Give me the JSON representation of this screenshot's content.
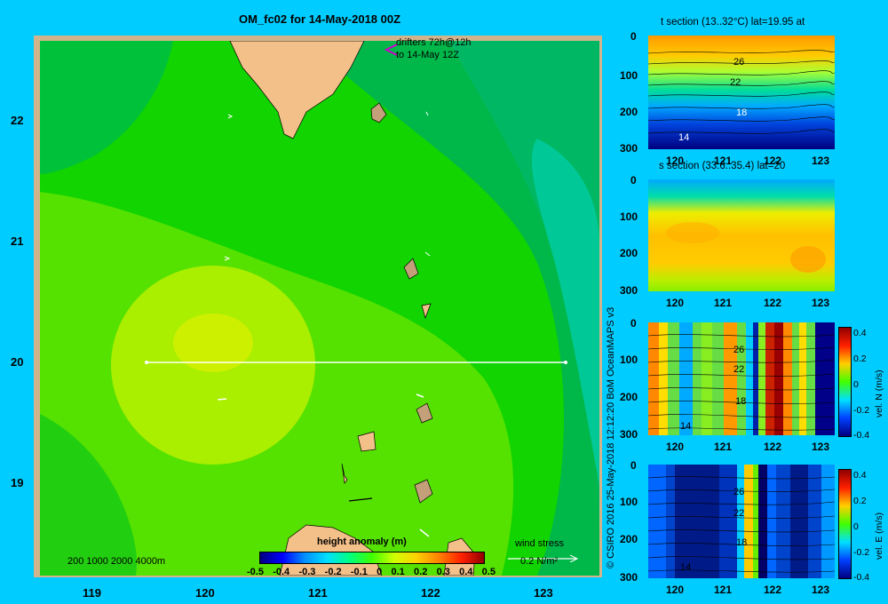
{
  "title": "OM_fc02 for 14-May-2018 00Z",
  "map": {
    "lon_ticks": [
      "119",
      "120",
      "121",
      "122",
      "123"
    ],
    "lat_ticks": [
      "22",
      "21",
      "20",
      "19"
    ],
    "drifters_line1": "drifters 72h@12h",
    "drifters_line2": "to 14-May 12Z",
    "depth_legend": "200  1000  2000  4000m",
    "wind_label": "wind stress",
    "wind_value": "0.2 N/m²",
    "colorbar_title": "height anomaly  (m)",
    "colorbar_ticks": [
      "-0.5",
      "-0.4",
      "-0.3",
      "-0.2",
      "-0.1",
      "0",
      "0.1",
      "0.2",
      "0.3",
      "0.4",
      "0.5"
    ]
  },
  "panels": [
    {
      "title": "t section (13..32°C) lat=19.95 at",
      "y_ticks": [
        "0",
        "100",
        "200",
        "300"
      ],
      "x_ticks": [
        "120",
        "121",
        "122",
        "123"
      ],
      "contours": [
        "26",
        "22",
        "18",
        "14"
      ]
    },
    {
      "title": "s section (33.6..35.4) lat=20",
      "y_ticks": [
        "0",
        "100",
        "200",
        "300"
      ],
      "x_ticks": [
        "120",
        "121",
        "122",
        "123"
      ],
      "contours": []
    },
    {
      "title": "",
      "y_ticks": [
        "0",
        "100",
        "200",
        "300"
      ],
      "x_ticks": [
        "120",
        "121",
        "122",
        "123"
      ],
      "contours": [
        "26",
        "22",
        "18",
        "14"
      ],
      "cbar_label": "vel. N  (m/s)",
      "cbar_ticks": [
        "0.4",
        "0.2",
        "0",
        "-0.2",
        "-0.4"
      ]
    },
    {
      "title": "",
      "y_ticks": [
        "0",
        "100",
        "200",
        "300"
      ],
      "x_ticks": [
        "120",
        "121",
        "122",
        "123"
      ],
      "contours": [
        "26",
        "22",
        "18",
        "14"
      ],
      "cbar_label": "vel. E  (m/s)",
      "cbar_ticks": [
        "0.4",
        "0.2",
        "0",
        "-0.2",
        "-0.4"
      ]
    }
  ],
  "credit": "© CSIRO 2016   25-May-2018 12:12:20 BoM OceanMAPS v3",
  "colors": {
    "background": "#00ccff",
    "land": "#f4c08a",
    "ocean_base": "#00dd00"
  }
}
